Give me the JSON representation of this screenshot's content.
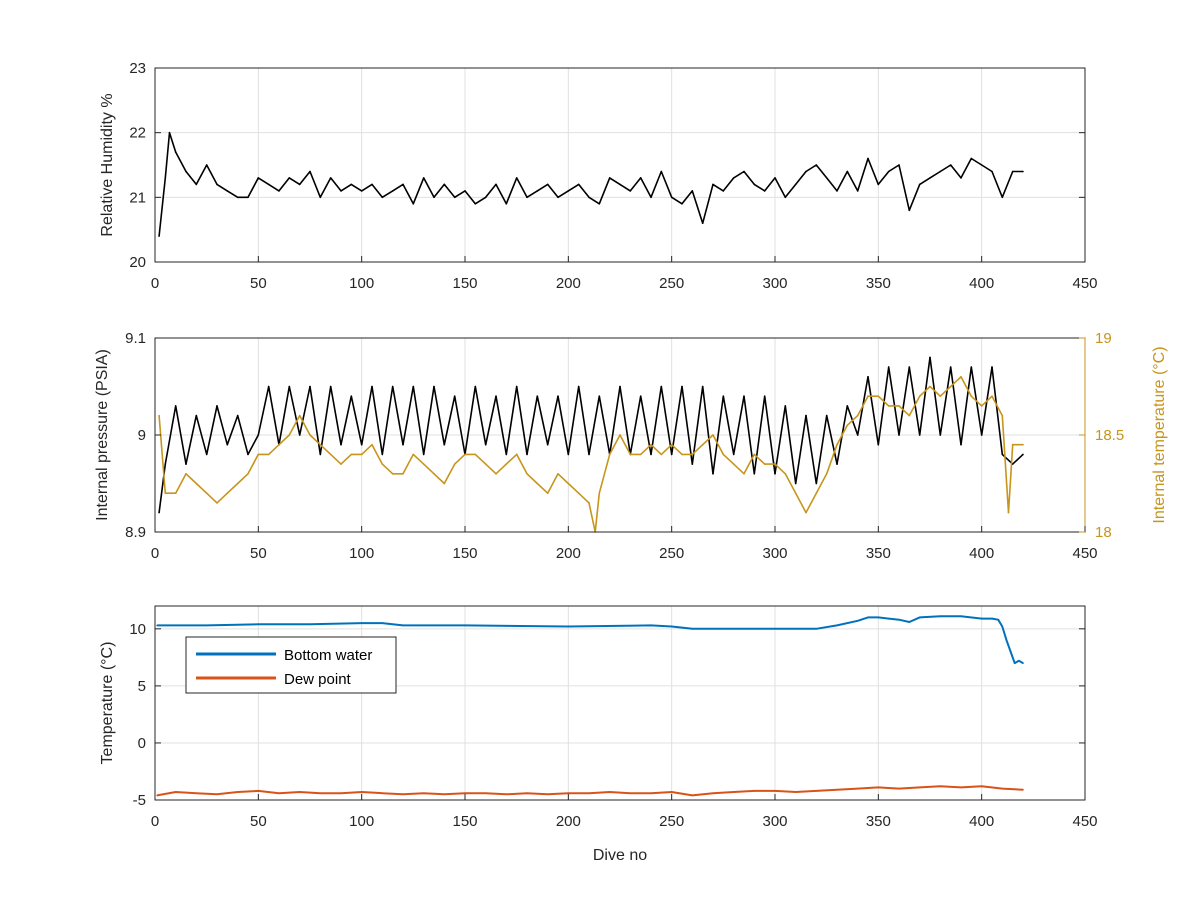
{
  "chart_data": [
    {
      "type": "line",
      "xlabel": "",
      "ylabel": "Relative Humidity %",
      "xlim": [
        0,
        450
      ],
      "ylim": [
        20,
        23
      ],
      "xticks": [
        0,
        50,
        100,
        150,
        200,
        250,
        300,
        350,
        400,
        450
      ],
      "yticks": [
        20,
        21,
        22,
        23
      ],
      "grid": true,
      "series": [
        {
          "color": "#000000",
          "x": [
            2,
            5,
            7,
            10,
            15,
            20,
            25,
            30,
            35,
            40,
            45,
            50,
            55,
            60,
            65,
            70,
            75,
            80,
            85,
            90,
            95,
            100,
            105,
            110,
            115,
            120,
            125,
            130,
            135,
            140,
            145,
            150,
            155,
            160,
            165,
            170,
            175,
            180,
            185,
            190,
            195,
            200,
            205,
            210,
            215,
            220,
            225,
            230,
            235,
            240,
            245,
            250,
            255,
            260,
            265,
            270,
            275,
            280,
            285,
            290,
            295,
            300,
            305,
            310,
            315,
            320,
            325,
            330,
            335,
            340,
            345,
            350,
            355,
            360,
            365,
            370,
            375,
            380,
            385,
            390,
            395,
            400,
            405,
            410,
            415,
            420
          ],
          "values": [
            20.4,
            21.3,
            22.0,
            21.7,
            21.4,
            21.2,
            21.5,
            21.2,
            21.1,
            21.0,
            21.0,
            21.3,
            21.2,
            21.1,
            21.3,
            21.2,
            21.4,
            21.0,
            21.3,
            21.1,
            21.2,
            21.1,
            21.2,
            21.0,
            21.1,
            21.2,
            20.9,
            21.3,
            21.0,
            21.2,
            21.0,
            21.1,
            20.9,
            21.0,
            21.2,
            20.9,
            21.3,
            21.0,
            21.1,
            21.2,
            21.0,
            21.1,
            21.2,
            21.0,
            20.9,
            21.3,
            21.2,
            21.1,
            21.3,
            21.0,
            21.4,
            21.0,
            20.9,
            21.1,
            20.6,
            21.2,
            21.1,
            21.3,
            21.4,
            21.2,
            21.1,
            21.3,
            21.0,
            21.2,
            21.4,
            21.5,
            21.3,
            21.1,
            21.4,
            21.1,
            21.6,
            21.2,
            21.4,
            21.5,
            20.8,
            21.2,
            21.3,
            21.4,
            21.5,
            21.3,
            21.6,
            21.5,
            21.4,
            21.0,
            21.4,
            21.4
          ]
        }
      ]
    },
    {
      "type": "line",
      "xlabel": "",
      "ylabel": "Internal pressure (PSIA)",
      "ylabel_right": "Internal temperature (°C)",
      "xlim": [
        0,
        450
      ],
      "ylim": [
        8.9,
        9.1
      ],
      "ylim_right": [
        18,
        19
      ],
      "xticks": [
        0,
        50,
        100,
        150,
        200,
        250,
        300,
        350,
        400,
        450
      ],
      "yticks": [
        8.9,
        9.0,
        9.1
      ],
      "yticks_right": [
        18,
        18.5,
        19
      ],
      "grid": true,
      "series": [
        {
          "axis": "left",
          "color": "#000000",
          "x": [
            2,
            5,
            10,
            15,
            20,
            25,
            30,
            35,
            40,
            45,
            50,
            55,
            60,
            65,
            70,
            75,
            80,
            85,
            90,
            95,
            100,
            105,
            110,
            115,
            120,
            125,
            130,
            135,
            140,
            145,
            150,
            155,
            160,
            165,
            170,
            175,
            180,
            185,
            190,
            195,
            200,
            205,
            210,
            215,
            220,
            225,
            230,
            235,
            240,
            245,
            250,
            255,
            260,
            265,
            270,
            275,
            280,
            285,
            290,
            295,
            300,
            305,
            310,
            315,
            320,
            325,
            330,
            335,
            340,
            345,
            350,
            355,
            360,
            365,
            370,
            375,
            380,
            385,
            390,
            395,
            400,
            405,
            410,
            415,
            420
          ],
          "values": [
            8.92,
            8.97,
            9.03,
            8.97,
            9.02,
            8.98,
            9.03,
            8.99,
            9.02,
            8.98,
            9.0,
            9.05,
            8.99,
            9.05,
            9.0,
            9.05,
            8.98,
            9.05,
            8.99,
            9.04,
            8.99,
            9.05,
            8.98,
            9.05,
            8.99,
            9.05,
            8.98,
            9.05,
            8.99,
            9.04,
            8.98,
            9.05,
            8.99,
            9.04,
            8.98,
            9.05,
            8.98,
            9.04,
            8.99,
            9.04,
            8.98,
            9.05,
            8.98,
            9.04,
            8.98,
            9.05,
            8.98,
            9.04,
            8.98,
            9.05,
            8.98,
            9.05,
            8.97,
            9.05,
            8.96,
            9.04,
            8.98,
            9.04,
            8.96,
            9.04,
            8.96,
            9.03,
            8.95,
            9.02,
            8.95,
            9.02,
            8.97,
            9.03,
            9.0,
            9.06,
            8.99,
            9.07,
            9.0,
            9.07,
            9.0,
            9.08,
            9.0,
            9.07,
            8.99,
            9.07,
            9.0,
            9.07,
            8.98,
            8.97,
            8.98
          ]
        },
        {
          "axis": "right",
          "color": "#c7951b",
          "x": [
            2,
            5,
            10,
            15,
            20,
            25,
            30,
            35,
            40,
            45,
            50,
            55,
            60,
            65,
            70,
            75,
            80,
            85,
            90,
            95,
            100,
            105,
            110,
            115,
            120,
            125,
            130,
            135,
            140,
            145,
            150,
            155,
            160,
            165,
            170,
            175,
            180,
            185,
            190,
            195,
            200,
            205,
            210,
            213,
            215,
            220,
            225,
            230,
            235,
            240,
            245,
            250,
            255,
            260,
            265,
            270,
            275,
            280,
            285,
            290,
            295,
            300,
            305,
            310,
            315,
            320,
            325,
            330,
            335,
            340,
            345,
            350,
            355,
            360,
            365,
            370,
            375,
            380,
            385,
            390,
            395,
            400,
            405,
            410,
            413,
            415,
            420
          ],
          "values": [
            18.6,
            18.2,
            18.2,
            18.3,
            18.25,
            18.2,
            18.15,
            18.2,
            18.25,
            18.3,
            18.4,
            18.4,
            18.45,
            18.5,
            18.6,
            18.5,
            18.45,
            18.4,
            18.35,
            18.4,
            18.4,
            18.45,
            18.35,
            18.3,
            18.3,
            18.4,
            18.35,
            18.3,
            18.25,
            18.35,
            18.4,
            18.4,
            18.35,
            18.3,
            18.35,
            18.4,
            18.3,
            18.25,
            18.2,
            18.3,
            18.25,
            18.2,
            18.15,
            18.0,
            18.2,
            18.4,
            18.5,
            18.4,
            18.4,
            18.45,
            18.4,
            18.45,
            18.4,
            18.4,
            18.45,
            18.5,
            18.4,
            18.35,
            18.3,
            18.4,
            18.35,
            18.35,
            18.3,
            18.2,
            18.1,
            18.2,
            18.3,
            18.45,
            18.55,
            18.6,
            18.7,
            18.7,
            18.65,
            18.65,
            18.6,
            18.7,
            18.75,
            18.7,
            18.75,
            18.8,
            18.7,
            18.65,
            18.7,
            18.6,
            18.1,
            18.45,
            18.45
          ]
        }
      ]
    },
    {
      "type": "line",
      "xlabel": "Dive no",
      "ylabel": "Temperature (°C)",
      "xlim": [
        0,
        450
      ],
      "ylim": [
        -5,
        12
      ],
      "xticks": [
        0,
        50,
        100,
        150,
        200,
        250,
        300,
        350,
        400,
        450
      ],
      "yticks": [
        -5,
        0,
        5,
        10
      ],
      "grid": true,
      "legend_placement": "top-left",
      "series": [
        {
          "name": "Bottom water",
          "color": "#0072bd",
          "x": [
            1,
            25,
            50,
            75,
            100,
            110,
            120,
            150,
            200,
            240,
            250,
            260,
            280,
            300,
            320,
            330,
            340,
            345,
            350,
            355,
            360,
            365,
            370,
            380,
            390,
            400,
            405,
            408,
            410,
            412,
            414,
            416,
            418,
            420
          ],
          "values": [
            10.3,
            10.3,
            10.4,
            10.4,
            10.5,
            10.5,
            10.3,
            10.3,
            10.2,
            10.3,
            10.2,
            10.0,
            10.0,
            10.0,
            10.0,
            10.3,
            10.7,
            11.0,
            11.0,
            10.9,
            10.8,
            10.6,
            11.0,
            11.1,
            11.1,
            10.9,
            10.9,
            10.8,
            10.2,
            9.0,
            8.0,
            7.0,
            7.2,
            7.0
          ]
        },
        {
          "name": "Dew point",
          "color": "#d95319",
          "x": [
            1,
            10,
            20,
            30,
            40,
            50,
            60,
            70,
            80,
            90,
            100,
            110,
            120,
            130,
            140,
            150,
            160,
            170,
            180,
            190,
            200,
            210,
            220,
            230,
            240,
            250,
            260,
            270,
            280,
            290,
            300,
            310,
            320,
            330,
            340,
            350,
            360,
            370,
            380,
            390,
            400,
            410,
            420
          ],
          "values": [
            -4.6,
            -4.3,
            -4.4,
            -4.5,
            -4.3,
            -4.2,
            -4.4,
            -4.3,
            -4.4,
            -4.4,
            -4.3,
            -4.4,
            -4.5,
            -4.4,
            -4.5,
            -4.4,
            -4.4,
            -4.5,
            -4.4,
            -4.5,
            -4.4,
            -4.4,
            -4.3,
            -4.4,
            -4.4,
            -4.3,
            -4.6,
            -4.4,
            -4.3,
            -4.2,
            -4.2,
            -4.3,
            -4.2,
            -4.1,
            -4.0,
            -3.9,
            -4.0,
            -3.9,
            -3.8,
            -3.9,
            -3.8,
            -4.0,
            -4.1
          ]
        }
      ]
    }
  ]
}
